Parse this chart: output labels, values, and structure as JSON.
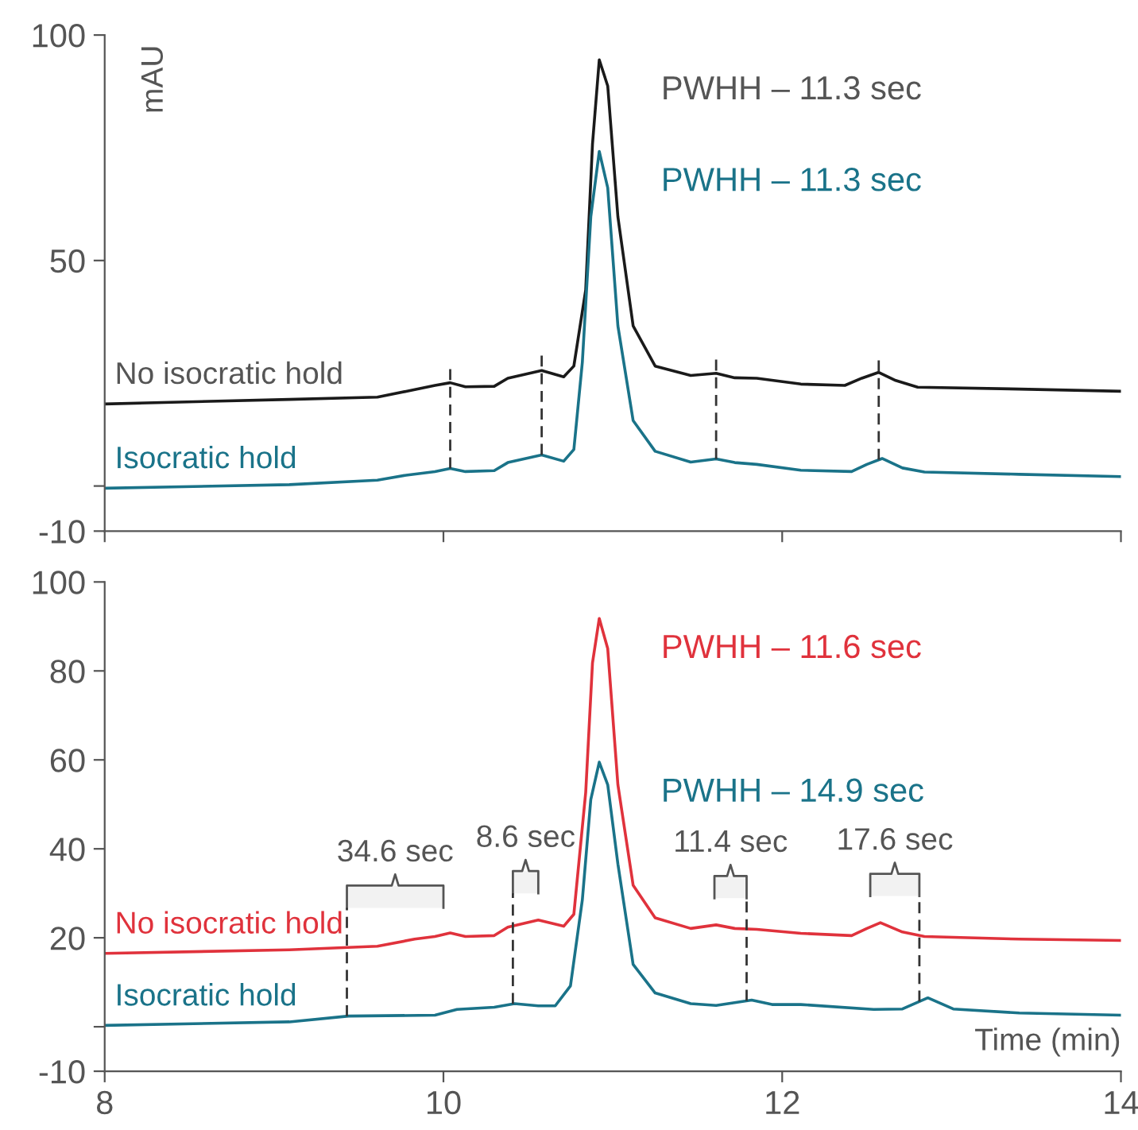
{
  "chart_data": [
    {
      "type": "line",
      "ylabel": "mAU",
      "xlim": [
        8,
        14
      ],
      "xticks": [
        8,
        10,
        12,
        14
      ],
      "ylim": [
        -10,
        100
      ],
      "yticks": [
        -10,
        {
          "value": 0,
          "label": null
        },
        50,
        100
      ],
      "tick_labels": "y",
      "grid": false,
      "series": [
        {
          "name": "No isocratic hold",
          "color": "#1a1a1a",
          "x": [
            8.0,
            9.09,
            9.61,
            9.78,
            9.95,
            10.04,
            10.13,
            10.3,
            10.38,
            10.58,
            10.71,
            10.77,
            10.84,
            10.88,
            10.92,
            10.97,
            11.03,
            11.12,
            11.25,
            11.46,
            11.61,
            11.72,
            11.85,
            12.11,
            12.37,
            12.47,
            12.57,
            12.67,
            12.8,
            13.4,
            14.0
          ],
          "values": [
            18.2,
            19.2,
            19.7,
            21.0,
            22.3,
            22.9,
            22.0,
            22.1,
            23.9,
            25.6,
            24.2,
            26.6,
            43.5,
            75.8,
            94.5,
            88.7,
            59.7,
            35.5,
            26.6,
            24.5,
            25.0,
            24.0,
            23.9,
            22.6,
            22.3,
            23.9,
            25.2,
            23.4,
            21.9,
            21.5,
            21.0
          ]
        },
        {
          "name": "Isocratic hold",
          "color": "#1a7389",
          "x": [
            8.0,
            9.09,
            9.61,
            9.78,
            9.95,
            10.04,
            10.13,
            10.3,
            10.38,
            10.58,
            10.71,
            10.77,
            10.82,
            10.87,
            10.92,
            10.97,
            11.03,
            11.12,
            11.25,
            11.46,
            11.61,
            11.72,
            11.85,
            12.11,
            12.41,
            12.5,
            12.59,
            12.71,
            12.84,
            13.4,
            14.0
          ],
          "values": [
            -0.5,
            0.3,
            1.3,
            2.4,
            3.2,
            3.9,
            3.2,
            3.4,
            5.2,
            6.9,
            5.5,
            8.1,
            27.4,
            59.7,
            74.2,
            66.1,
            35.5,
            14.5,
            7.7,
            5.3,
            6.0,
            5.2,
            4.8,
            3.5,
            3.2,
            4.8,
            6.1,
            4.0,
            3.1,
            2.6,
            2.1
          ]
        }
      ],
      "ref_lines": [
        {
          "axis": "x",
          "value": 10.04,
          "label": null,
          "line_style": "dashed"
        },
        {
          "axis": "x",
          "value": 10.58,
          "label": null,
          "line_style": "dashed"
        },
        {
          "axis": "x",
          "value": 11.61,
          "label": null,
          "line_style": "dashed"
        },
        {
          "axis": "x",
          "value": 12.57,
          "label": null,
          "line_style": "dashed"
        }
      ],
      "annotations": [
        "PWHH – 11.3 sec",
        "PWHH – 11.3 sec"
      ]
    },
    {
      "type": "line",
      "xlabel": "Time (min)",
      "xlim": [
        8,
        14
      ],
      "xticks": [
        8,
        10,
        12,
        14
      ],
      "ylim": [
        -10,
        100
      ],
      "yticks": [
        -10,
        {
          "value": 0,
          "label": null
        },
        20,
        40,
        60,
        80,
        100
      ],
      "grid": false,
      "series": [
        {
          "name": "No isocratic hold",
          "color": "#e0323c",
          "x": [
            8.0,
            9.09,
            9.61,
            9.83,
            9.95,
            10.04,
            10.13,
            10.3,
            10.38,
            10.56,
            10.71,
            10.77,
            10.84,
            10.88,
            10.92,
            10.97,
            11.03,
            11.12,
            11.25,
            11.46,
            11.61,
            11.72,
            11.85,
            12.11,
            12.41,
            12.5,
            12.58,
            12.71,
            12.84,
            13.4,
            14.0
          ],
          "values": [
            16.5,
            17.3,
            18.1,
            19.7,
            20.3,
            21.1,
            20.3,
            20.5,
            22.4,
            24.0,
            22.6,
            25.3,
            52.7,
            81.8,
            91.8,
            85.0,
            54.4,
            31.8,
            24.5,
            22.1,
            22.9,
            22.1,
            21.9,
            21.0,
            20.5,
            22.1,
            23.4,
            21.3,
            20.3,
            19.7,
            19.4
          ]
        },
        {
          "name": "Isocratic hold",
          "color": "#1a7389",
          "x": [
            8.0,
            9.09,
            9.44,
            9.95,
            10.08,
            10.3,
            10.42,
            10.56,
            10.66,
            10.75,
            10.82,
            10.87,
            10.92,
            10.97,
            11.03,
            11.12,
            11.25,
            11.46,
            11.61,
            11.82,
            11.94,
            12.11,
            12.54,
            12.71,
            12.86,
            13.01,
            13.4,
            14.0
          ],
          "values": [
            0.3,
            1.1,
            2.4,
            2.6,
            3.9,
            4.4,
            5.2,
            4.7,
            4.7,
            9.2,
            28.5,
            51.1,
            59.5,
            54.4,
            36.6,
            14.0,
            7.6,
            5.2,
            4.8,
            6.0,
            5.0,
            5.0,
            3.9,
            4.0,
            6.5,
            4.0,
            3.1,
            2.6
          ]
        }
      ],
      "ref_lines": [
        {
          "axis": "x",
          "value": 9.43,
          "label": null,
          "line_style": "dashed"
        },
        {
          "axis": "x",
          "value": 10.41,
          "label": null,
          "line_style": "dashed"
        },
        {
          "axis": "x",
          "value": 11.79,
          "label": null,
          "line_style": "dashed"
        },
        {
          "axis": "x",
          "value": 12.81,
          "label": null,
          "line_style": "dashed"
        }
      ],
      "bands": [
        {
          "axis": "x",
          "from": 9.43,
          "to": 10.0,
          "label": "34.6 sec",
          "color": "#f2f2f2"
        },
        {
          "axis": "x",
          "from": 10.41,
          "to": 10.56,
          "label": "8.6 sec",
          "color": "#f2f2f2"
        },
        {
          "axis": "x",
          "from": 11.6,
          "to": 11.79,
          "label": "11.4 sec",
          "color": "#f2f2f2"
        },
        {
          "axis": "x",
          "from": 12.52,
          "to": 12.81,
          "label": "17.6 sec",
          "color": "#f2f2f2"
        }
      ],
      "annotations": [
        "PWHH – 11.6 sec",
        "PWHH – 14.9 sec"
      ]
    }
  ]
}
